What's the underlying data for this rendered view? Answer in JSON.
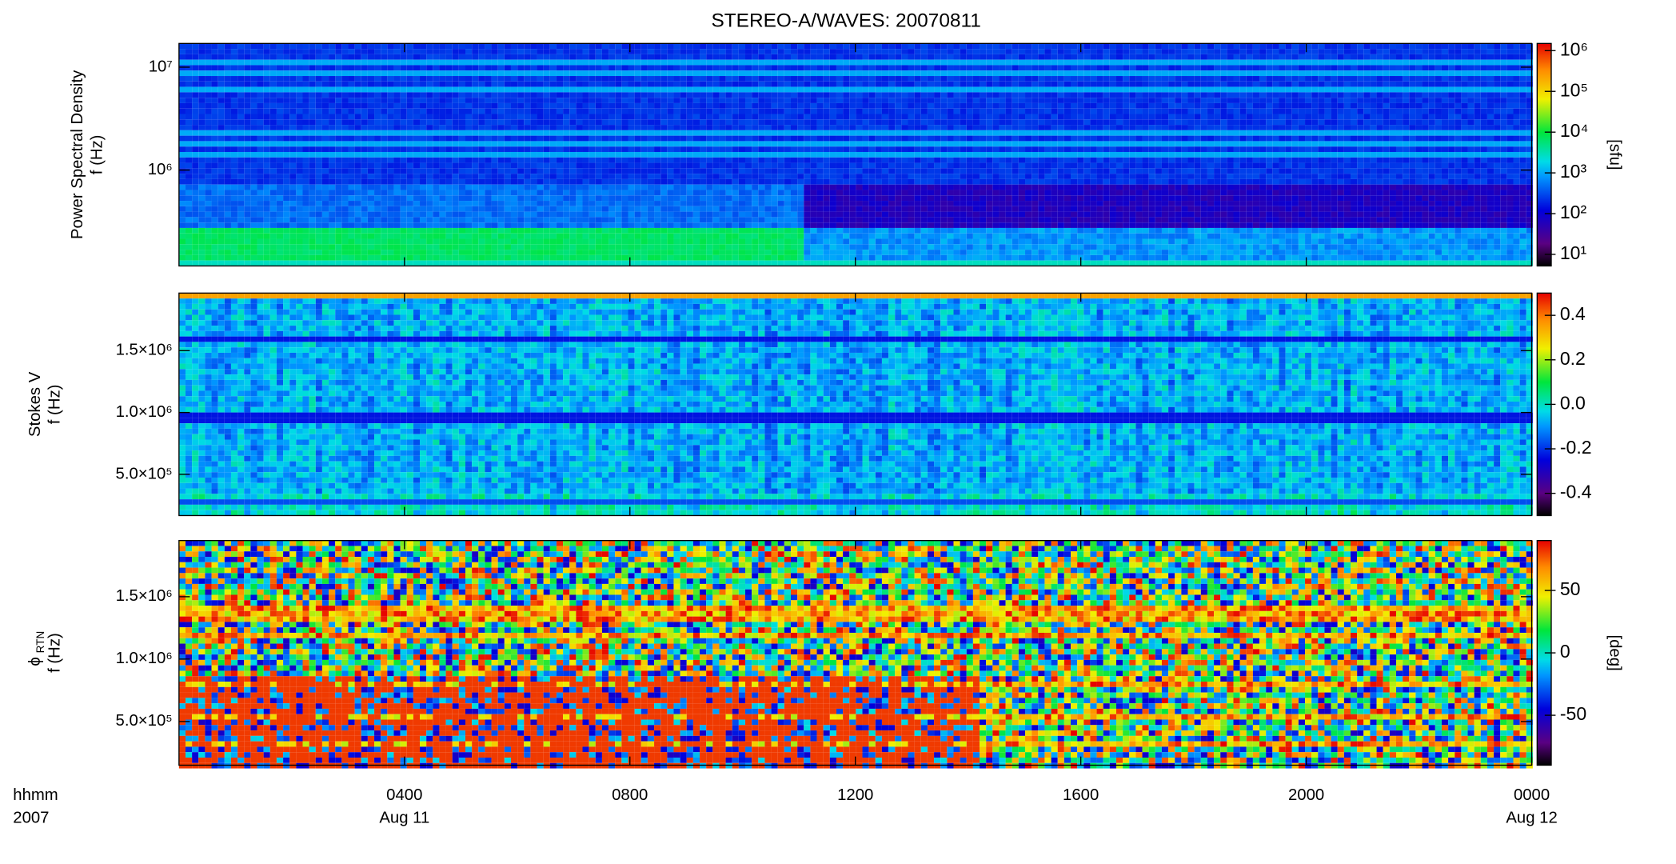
{
  "chart_data": [
    {
      "type": "heatmap",
      "title": "STEREO-A/WAVES: 20070811",
      "ylabel": [
        "Power Spectral Density",
        "f (Hz)"
      ],
      "ylog": true,
      "ylim": [
        117000,
        17000000
      ],
      "yticks": [
        {
          "value": 1000000,
          "label": "10⁶"
        },
        {
          "value": 10000000,
          "label": "10⁷"
        }
      ],
      "colorbar": {
        "label": "[sfu]",
        "log": true,
        "lim": [
          5.2,
          1500000
        ],
        "ticks": [
          {
            "value": 10,
            "label": "10¹"
          },
          {
            "value": 100,
            "label": "10²"
          },
          {
            "value": 1000,
            "label": "10³"
          },
          {
            "value": 10000,
            "label": "10⁴"
          },
          {
            "value": 100000,
            "label": "10⁵"
          },
          {
            "value": 1000000,
            "label": "10⁶"
          }
        ]
      }
    },
    {
      "type": "heatmap",
      "ylabel": [
        "Stokes V",
        "f (Hz)"
      ],
      "ylog": false,
      "ylim": [
        167000,
        1965000
      ],
      "yticks": [
        {
          "value": 500000,
          "label": "5.0×10⁵"
        },
        {
          "value": 1000000,
          "label": "1.0×10⁶"
        },
        {
          "value": 1500000,
          "label": "1.5×10⁶"
        }
      ],
      "colorbar": {
        "log": false,
        "lim": [
          -0.5,
          0.5
        ],
        "ticks": [
          -0.4,
          -0.2,
          {
            "value": 0,
            "label": "0.0"
          },
          0.2,
          0.4
        ]
      }
    },
    {
      "type": "heatmap",
      "ylabel_symbol": "ϕ",
      "ylabel_subscript": "RTN",
      "ylabel": [
        "f (Hz)"
      ],
      "ylog": false,
      "ylim": [
        150000,
        1950000
      ],
      "yticks": [
        {
          "value": 500000,
          "label": "5.0×10⁵"
        },
        {
          "value": 1000000,
          "label": "1.0×10⁶"
        },
        {
          "value": 1500000,
          "label": "1.5×10⁶"
        }
      ],
      "colorbar": {
        "label": "[deg]",
        "log": false,
        "lim": [
          -90,
          90
        ],
        "ticks": [
          -50,
          0,
          50
        ]
      },
      "xlabel": [
        "hhmm",
        "2007"
      ],
      "xlim": [
        0,
        24
      ],
      "xticks": [
        {
          "value": 4,
          "label": "0400"
        },
        {
          "value": 8,
          "label": "0800"
        },
        {
          "value": 12,
          "label": "1200"
        },
        {
          "value": 16,
          "label": "1600"
        },
        {
          "value": 20,
          "label": "2000"
        },
        {
          "value": 24,
          "label": "0000"
        }
      ],
      "xtick_dates": [
        "Aug 11",
        null,
        null,
        null,
        null,
        "Aug 12"
      ]
    }
  ]
}
